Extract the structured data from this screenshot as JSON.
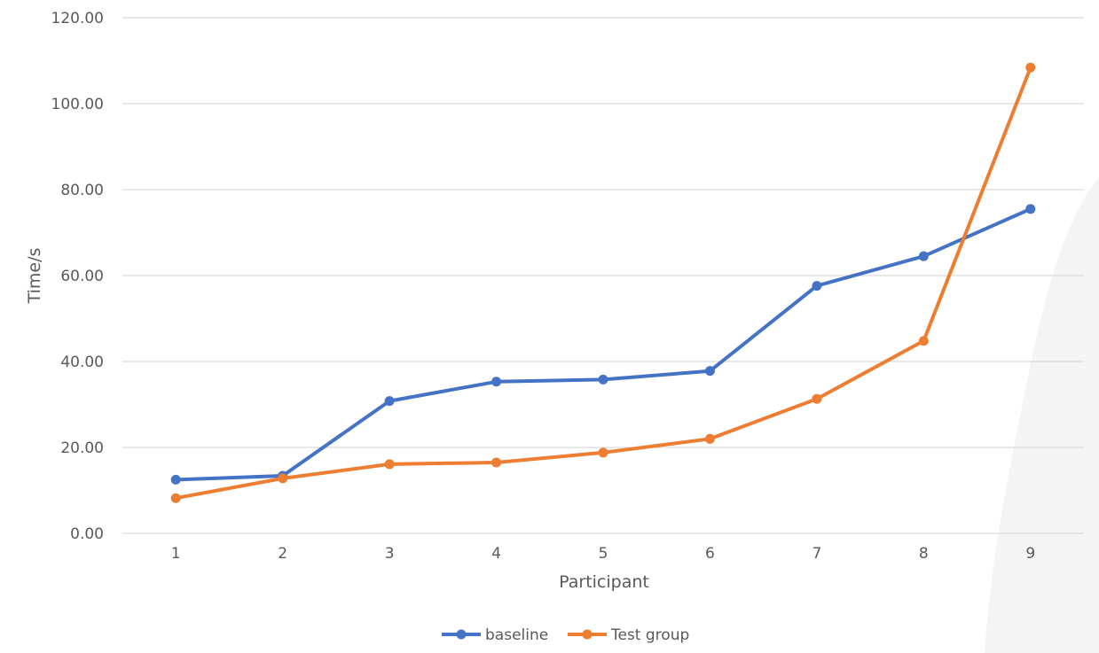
{
  "chart_data": {
    "type": "line",
    "title": "",
    "xlabel": "Participant",
    "ylabel": "Time/s",
    "categories": [
      "1",
      "2",
      "3",
      "4",
      "5",
      "6",
      "7",
      "8",
      "9"
    ],
    "ylim": [
      0,
      120
    ],
    "yticks": [
      "0.00",
      "20.00",
      "40.00",
      "60.00",
      "80.00",
      "100.00",
      "120.00"
    ],
    "grid": true,
    "legend_position": "bottom",
    "series": [
      {
        "name": "baseline",
        "color": "#4472C4",
        "values": [
          12.5,
          13.4,
          30.8,
          35.3,
          35.8,
          37.8,
          57.6,
          64.5,
          75.5
        ]
      },
      {
        "name": "Test group",
        "color": "#ED7D31",
        "values": [
          8.2,
          12.8,
          16.1,
          16.5,
          18.8,
          22.0,
          31.3,
          44.8,
          108.4
        ]
      }
    ]
  }
}
